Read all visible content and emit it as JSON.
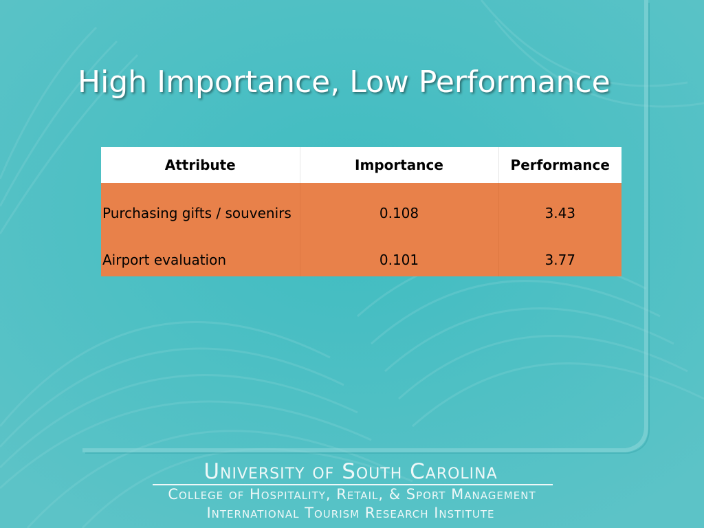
{
  "slide": {
    "title": "High Importance, Low Performance"
  },
  "table": {
    "headers": {
      "attribute": "Attribute",
      "importance": "Importance",
      "performance": "Performance"
    },
    "rows": [
      {
        "attribute": "Purchasing gifts / souvenirs",
        "importance": "0.108",
        "performance": "3.43"
      },
      {
        "attribute": "Airport evaluation",
        "importance": "0.101",
        "performance": "3.77"
      }
    ]
  },
  "footer": {
    "university": "University of South Carolina",
    "college": "College of Hospitality, Retail, & Sport Management",
    "institute": "International Tourism Research Institute"
  },
  "colors": {
    "background": "#47b9be",
    "header_row": "#ffffff",
    "body_row": "#e8814a",
    "title_text": "#ffffff"
  }
}
